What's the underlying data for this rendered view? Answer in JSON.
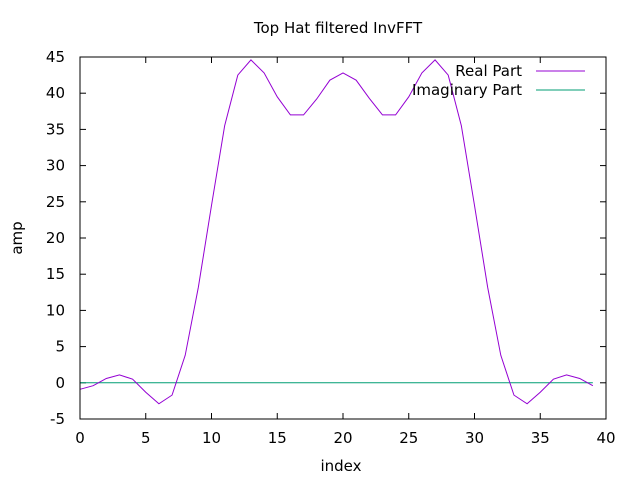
{
  "chart_data": {
    "type": "line",
    "title": "Top Hat filtered InvFFT",
    "xlabel": "index",
    "ylabel": "amp",
    "xlim": [
      0,
      40
    ],
    "ylim": [
      -5,
      45
    ],
    "xticks": [
      0,
      5,
      10,
      15,
      20,
      25,
      30,
      35,
      40
    ],
    "yticks": [
      -5,
      0,
      5,
      10,
      15,
      20,
      25,
      30,
      35,
      40,
      45
    ],
    "grid": false,
    "legend_position": "top-right",
    "x": [
      0,
      1,
      2,
      3,
      4,
      5,
      6,
      7,
      8,
      9,
      10,
      11,
      12,
      13,
      14,
      15,
      16,
      17,
      18,
      19,
      20,
      21,
      22,
      23,
      24,
      25,
      26,
      27,
      28,
      29,
      30,
      31,
      32,
      33,
      34,
      35,
      36,
      37,
      38,
      39
    ],
    "series": [
      {
        "name": "Real Part",
        "color": "#9400d3",
        "values": [
          -0.9,
          -0.4,
          0.6,
          1.1,
          0.5,
          -1.3,
          -2.9,
          -1.7,
          3.8,
          13.2,
          24.5,
          35.5,
          42.5,
          44.6,
          42.8,
          39.5,
          37.0,
          37.0,
          39.2,
          41.8,
          42.8,
          41.8,
          39.3,
          37.0,
          37.0,
          39.5,
          42.8,
          44.6,
          42.5,
          35.5,
          24.5,
          13.2,
          3.8,
          -1.7,
          -2.9,
          -1.3,
          0.5,
          1.1,
          0.6,
          -0.4
        ]
      },
      {
        "name": "Imaginary Part",
        "color": "#009e73",
        "values": [
          0,
          0,
          0,
          0,
          0,
          0,
          0,
          0,
          0,
          0,
          0,
          0,
          0,
          0,
          0,
          0,
          0,
          0,
          0,
          0,
          0,
          0,
          0,
          0,
          0,
          0,
          0,
          0,
          0,
          0,
          0,
          0,
          0,
          0,
          0,
          0,
          0,
          0,
          0,
          0
        ]
      }
    ]
  }
}
